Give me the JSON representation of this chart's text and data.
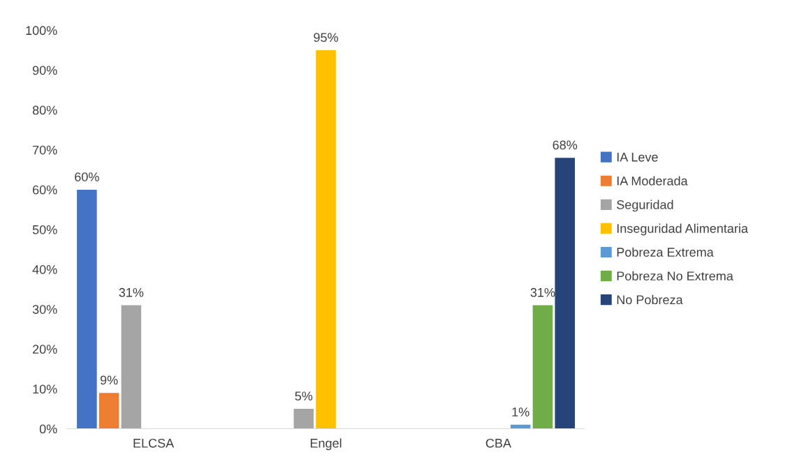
{
  "chart_data": {
    "type": "bar",
    "categories": [
      "ELCSA",
      "Engel",
      "CBA"
    ],
    "series": [
      {
        "name": "IA Leve",
        "color": "#4472c4",
        "values": [
          60,
          null,
          null
        ],
        "value_labels": [
          "60%",
          null,
          null
        ]
      },
      {
        "name": "IA Moderada",
        "color": "#ed7d31",
        "values": [
          9,
          null,
          null
        ],
        "value_labels": [
          "9%",
          null,
          null
        ]
      },
      {
        "name": "Seguridad",
        "color": "#a5a5a5",
        "values": [
          31,
          5,
          null
        ],
        "value_labels": [
          "31%",
          "5%",
          null
        ]
      },
      {
        "name": "Inseguridad Alimentaria",
        "color": "#ffc000",
        "values": [
          null,
          95,
          null
        ],
        "value_labels": [
          null,
          "95%",
          null
        ]
      },
      {
        "name": "Pobreza Extrema",
        "color": "#5b9bd5",
        "values": [
          null,
          null,
          1
        ],
        "value_labels": [
          null,
          null,
          "1%"
        ]
      },
      {
        "name": "Pobreza No Extrema",
        "color": "#70ad47",
        "values": [
          null,
          null,
          31
        ],
        "value_labels": [
          null,
          null,
          "31%"
        ]
      },
      {
        "name": "No Pobreza",
        "color": "#264478",
        "values": [
          null,
          null,
          68
        ],
        "value_labels": [
          null,
          null,
          "68%"
        ]
      }
    ],
    "ylim": [
      0,
      100
    ],
    "yticks": [
      {
        "value": 0,
        "label": "0%"
      },
      {
        "value": 10,
        "label": "10%"
      },
      {
        "value": 20,
        "label": "20%"
      },
      {
        "value": 30,
        "label": "30%"
      },
      {
        "value": 40,
        "label": "40%"
      },
      {
        "value": 50,
        "label": "50%"
      },
      {
        "value": 60,
        "label": "60%"
      },
      {
        "value": 70,
        "label": "70%"
      },
      {
        "value": 80,
        "label": "80%"
      },
      {
        "value": 90,
        "label": "90%"
      },
      {
        "value": 100,
        "label": "100%"
      }
    ],
    "grid": false,
    "legend": "right"
  }
}
